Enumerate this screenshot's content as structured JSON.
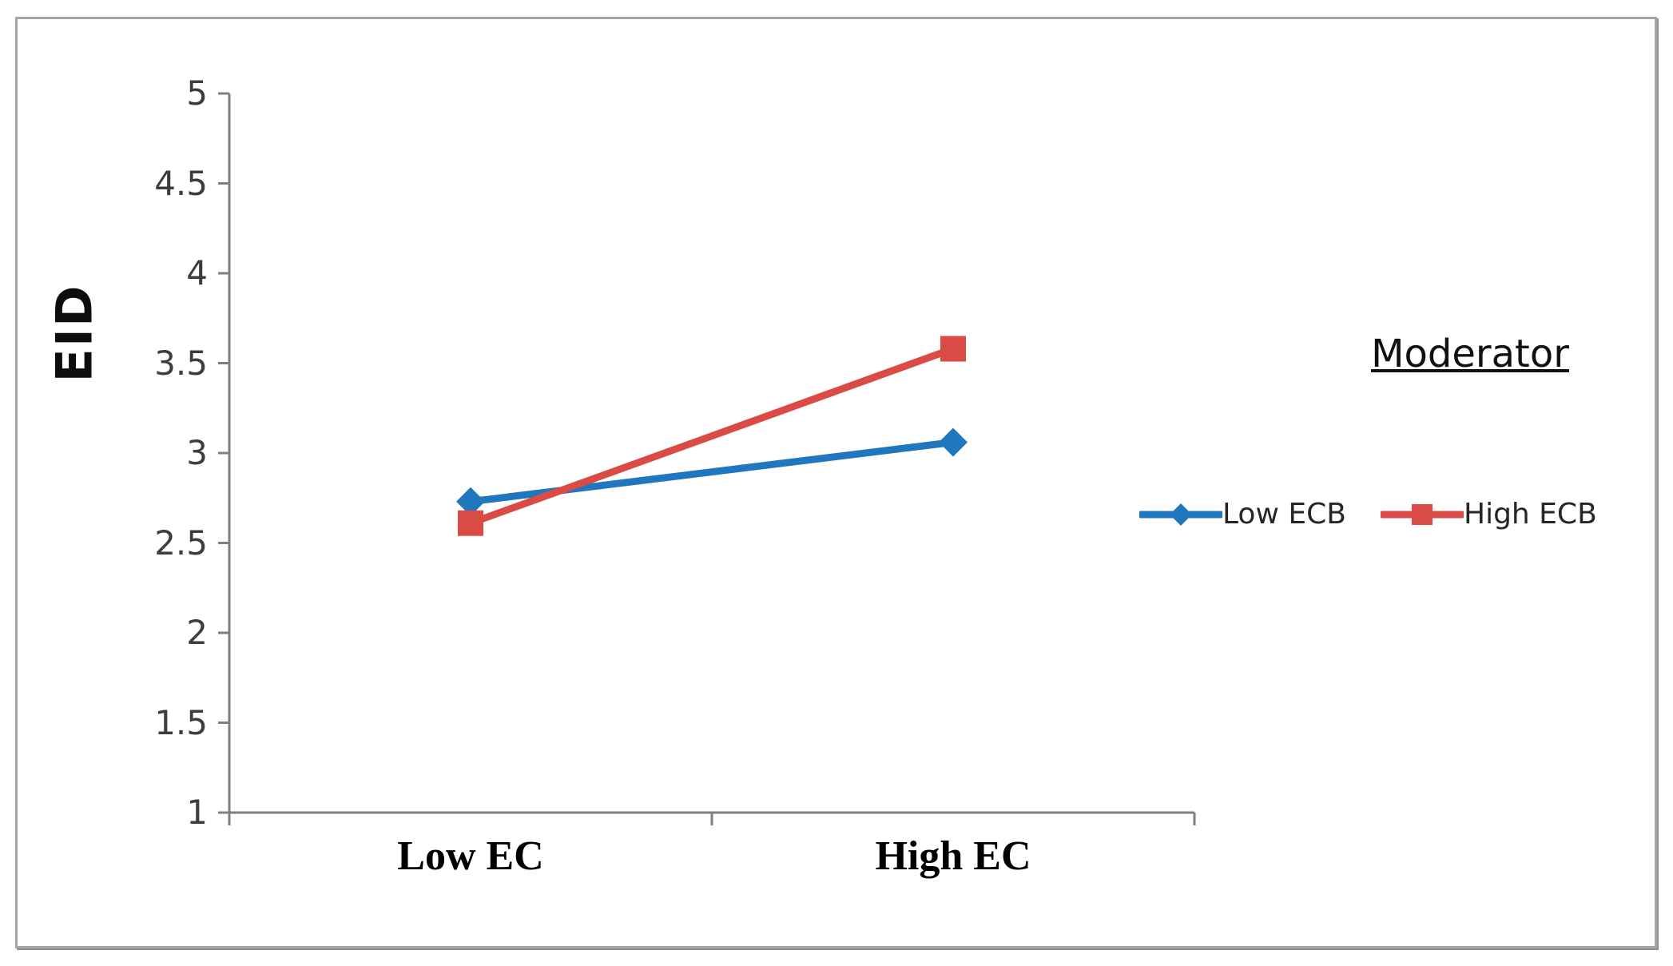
{
  "chart_data": {
    "type": "line",
    "categories": [
      "Low EC",
      "High EC"
    ],
    "series": [
      {
        "name": "Low ECB",
        "marker": "diamond",
        "color": "#2177BD",
        "values": [
          2.73,
          3.06
        ]
      },
      {
        "name": "High ECB",
        "marker": "square",
        "color": "#DB4B45",
        "values": [
          2.61,
          3.58
        ]
      }
    ],
    "title": "",
    "xlabel": "",
    "ylabel": "EID",
    "ylim": [
      1,
      5
    ],
    "ytick_step": 0.5,
    "yticks": [
      1,
      1.5,
      2,
      2.5,
      3,
      3.5,
      4,
      4.5,
      5
    ],
    "grid": false,
    "legend_title": "Moderator",
    "legend_position": "right-middle",
    "axis_color": "#7f7f7f",
    "tick_label_color": "#3d3d3d"
  }
}
